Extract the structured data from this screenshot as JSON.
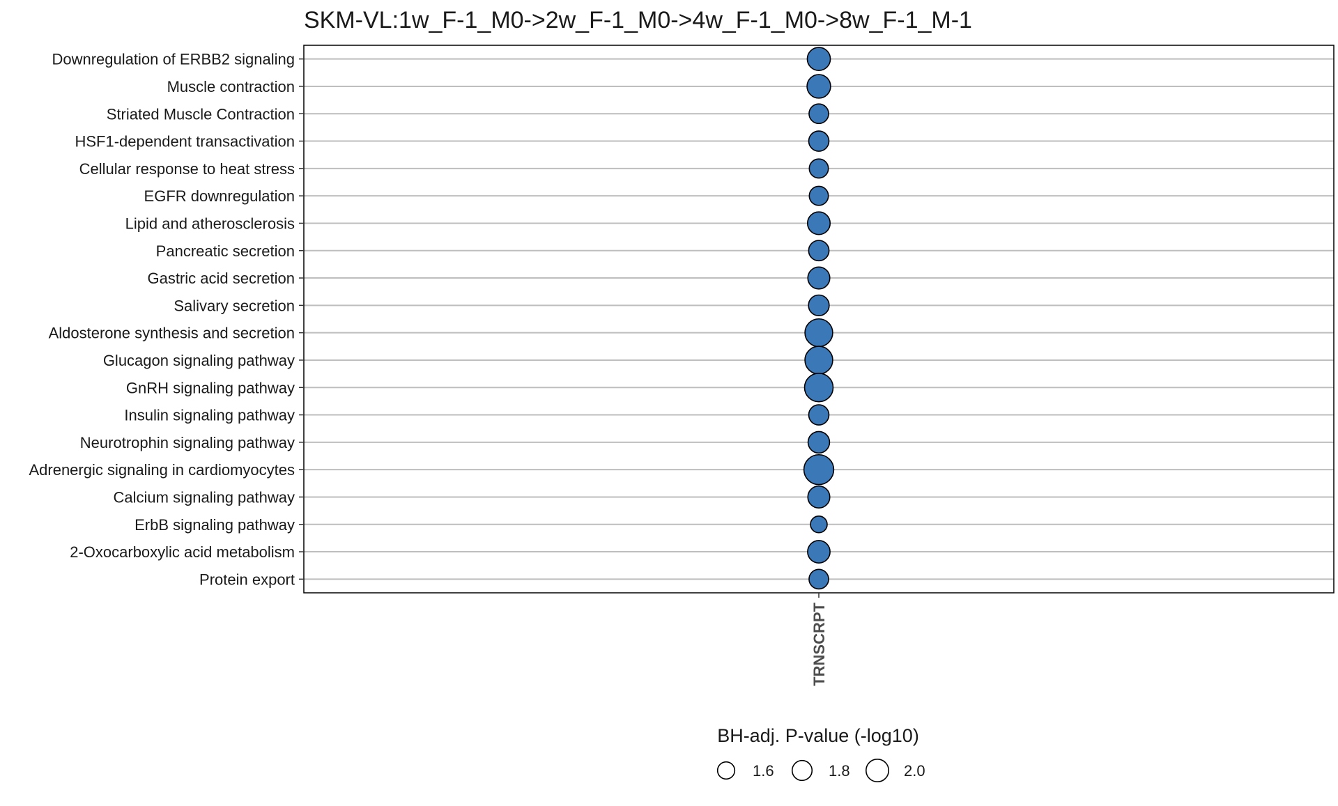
{
  "chart_data": {
    "type": "scatter",
    "title": "SKM-VL:1w_F-1_M0->2w_F-1_M0->4w_F-1_M0->8w_F-1_M-1",
    "x_categories": [
      "TRNSCRPT"
    ],
    "y_categories": [
      "Downregulation of ERBB2 signaling",
      "Muscle contraction",
      "Striated Muscle Contraction",
      "HSF1-dependent transactivation",
      "Cellular response to heat stress",
      "EGFR downregulation",
      "Lipid and atherosclerosis",
      "Pancreatic secretion",
      "Gastric acid secretion",
      "Salivary secretion",
      "Aldosterone synthesis and secretion",
      "Glucagon signaling pathway",
      "GnRH signaling pathway",
      "Insulin signaling pathway",
      "Neurotrophin signaling pathway",
      "Adrenergic signaling in cardiomyocytes",
      "Calcium signaling pathway",
      "ErbB signaling pathway",
      "2-Oxocarboxylic acid metabolism",
      "Protein export"
    ],
    "points": [
      {
        "pathway": "Downregulation of ERBB2 signaling",
        "x": "TRNSCRPT",
        "size": 1.78
      },
      {
        "pathway": "Muscle contraction",
        "x": "TRNSCRPT",
        "size": 1.81
      },
      {
        "pathway": "Striated Muscle Contraction",
        "x": "TRNSCRPT",
        "size": 1.56
      },
      {
        "pathway": "HSF1-dependent transactivation",
        "x": "TRNSCRPT",
        "size": 1.6
      },
      {
        "pathway": "Cellular response to heat stress",
        "x": "TRNSCRPT",
        "size": 1.53
      },
      {
        "pathway": "EGFR downregulation",
        "x": "TRNSCRPT",
        "size": 1.53
      },
      {
        "pathway": "Lipid and atherosclerosis",
        "x": "TRNSCRPT",
        "size": 1.75
      },
      {
        "pathway": "Pancreatic secretion",
        "x": "TRNSCRPT",
        "size": 1.61
      },
      {
        "pathway": "Gastric acid secretion",
        "x": "TRNSCRPT",
        "size": 1.71
      },
      {
        "pathway": "Salivary secretion",
        "x": "TRNSCRPT",
        "size": 1.63
      },
      {
        "pathway": "Aldosterone synthesis and secretion",
        "x": "TRNSCRPT",
        "size": 2.07
      },
      {
        "pathway": "Glucagon signaling pathway",
        "x": "TRNSCRPT",
        "size": 2.07
      },
      {
        "pathway": "GnRH signaling pathway",
        "x": "TRNSCRPT",
        "size": 2.12
      },
      {
        "pathway": "Insulin signaling pathway",
        "x": "TRNSCRPT",
        "size": 1.6
      },
      {
        "pathway": "Neurotrophin signaling pathway",
        "x": "TRNSCRPT",
        "size": 1.68
      },
      {
        "pathway": "Adrenergic signaling in cardiomyocytes",
        "x": "TRNSCRPT",
        "size": 2.2
      },
      {
        "pathway": "Calcium signaling pathway",
        "x": "TRNSCRPT",
        "size": 1.71
      },
      {
        "pathway": "ErbB signaling pathway",
        "x": "TRNSCRPT",
        "size": 1.38
      },
      {
        "pathway": "2-Oxocarboxylic acid metabolism",
        "x": "TRNSCRPT",
        "size": 1.74
      },
      {
        "pathway": "Protein export",
        "x": "TRNSCRPT",
        "size": 1.56
      }
    ],
    "size_legend": {
      "title": "BH-adj. P-value (-log10)",
      "values": [
        1.6,
        1.8,
        2.0
      ],
      "labels": [
        "1.6",
        "1.8",
        "2.0"
      ],
      "placement": "bottom"
    },
    "grid": true,
    "colors": {
      "point_fill": "#3A78B8",
      "point_stroke": "#000000",
      "gridline": "#BEBEBE",
      "panel_border": "#000000",
      "text": "#1A1A1A"
    }
  }
}
